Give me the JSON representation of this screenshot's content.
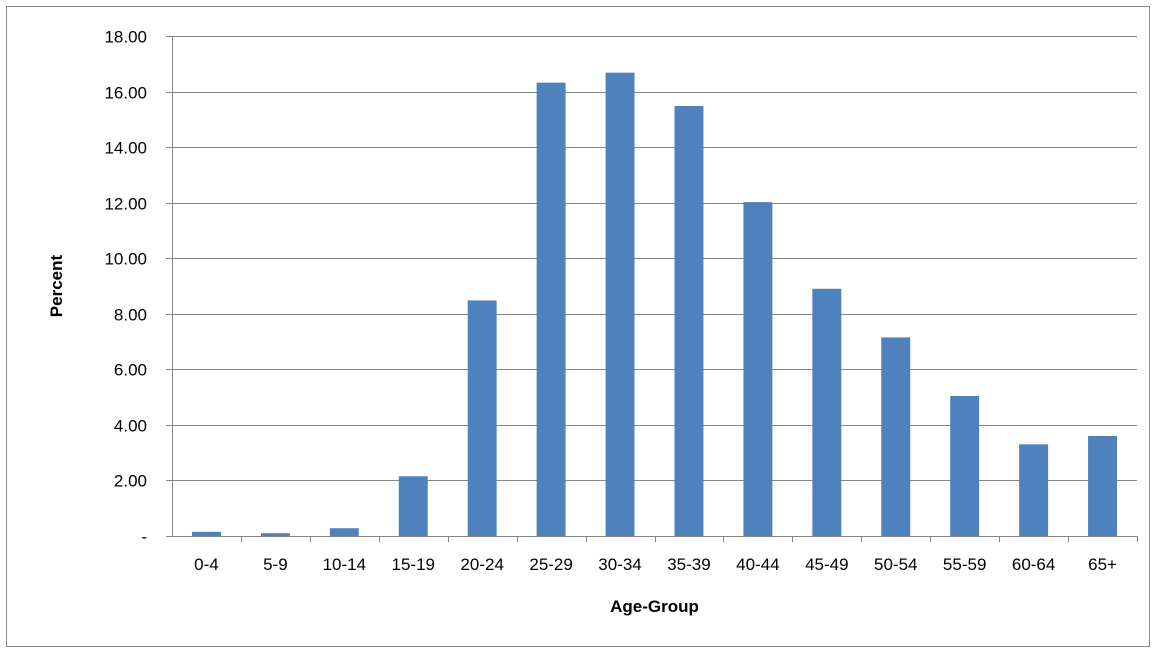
{
  "chart_data": {
    "type": "bar",
    "title": "",
    "xlabel": "Age-Group",
    "ylabel": "Percent",
    "categories": [
      "0-4",
      "5-9",
      "10-14",
      "15-19",
      "20-24",
      "25-29",
      "30-34",
      "35-39",
      "40-44",
      "45-49",
      "50-54",
      "55-59",
      "60-64",
      "65+"
    ],
    "values": [
      0.15,
      0.1,
      0.28,
      2.15,
      8.48,
      16.32,
      16.68,
      15.48,
      12.02,
      8.9,
      7.15,
      5.04,
      3.3,
      3.6
    ],
    "ylim": [
      0,
      18
    ],
    "yticks": [
      0,
      2,
      4,
      6,
      8,
      10,
      12,
      14,
      16,
      18
    ],
    "ytick_labels": [
      "-",
      "2.00",
      "4.00",
      "6.00",
      "8.00",
      "10.00",
      "12.00",
      "14.00",
      "16.00",
      "18.00"
    ],
    "grid": "horizontal",
    "legend": "none",
    "bar_color": "#4f81bd",
    "grid_color": "#868686"
  }
}
